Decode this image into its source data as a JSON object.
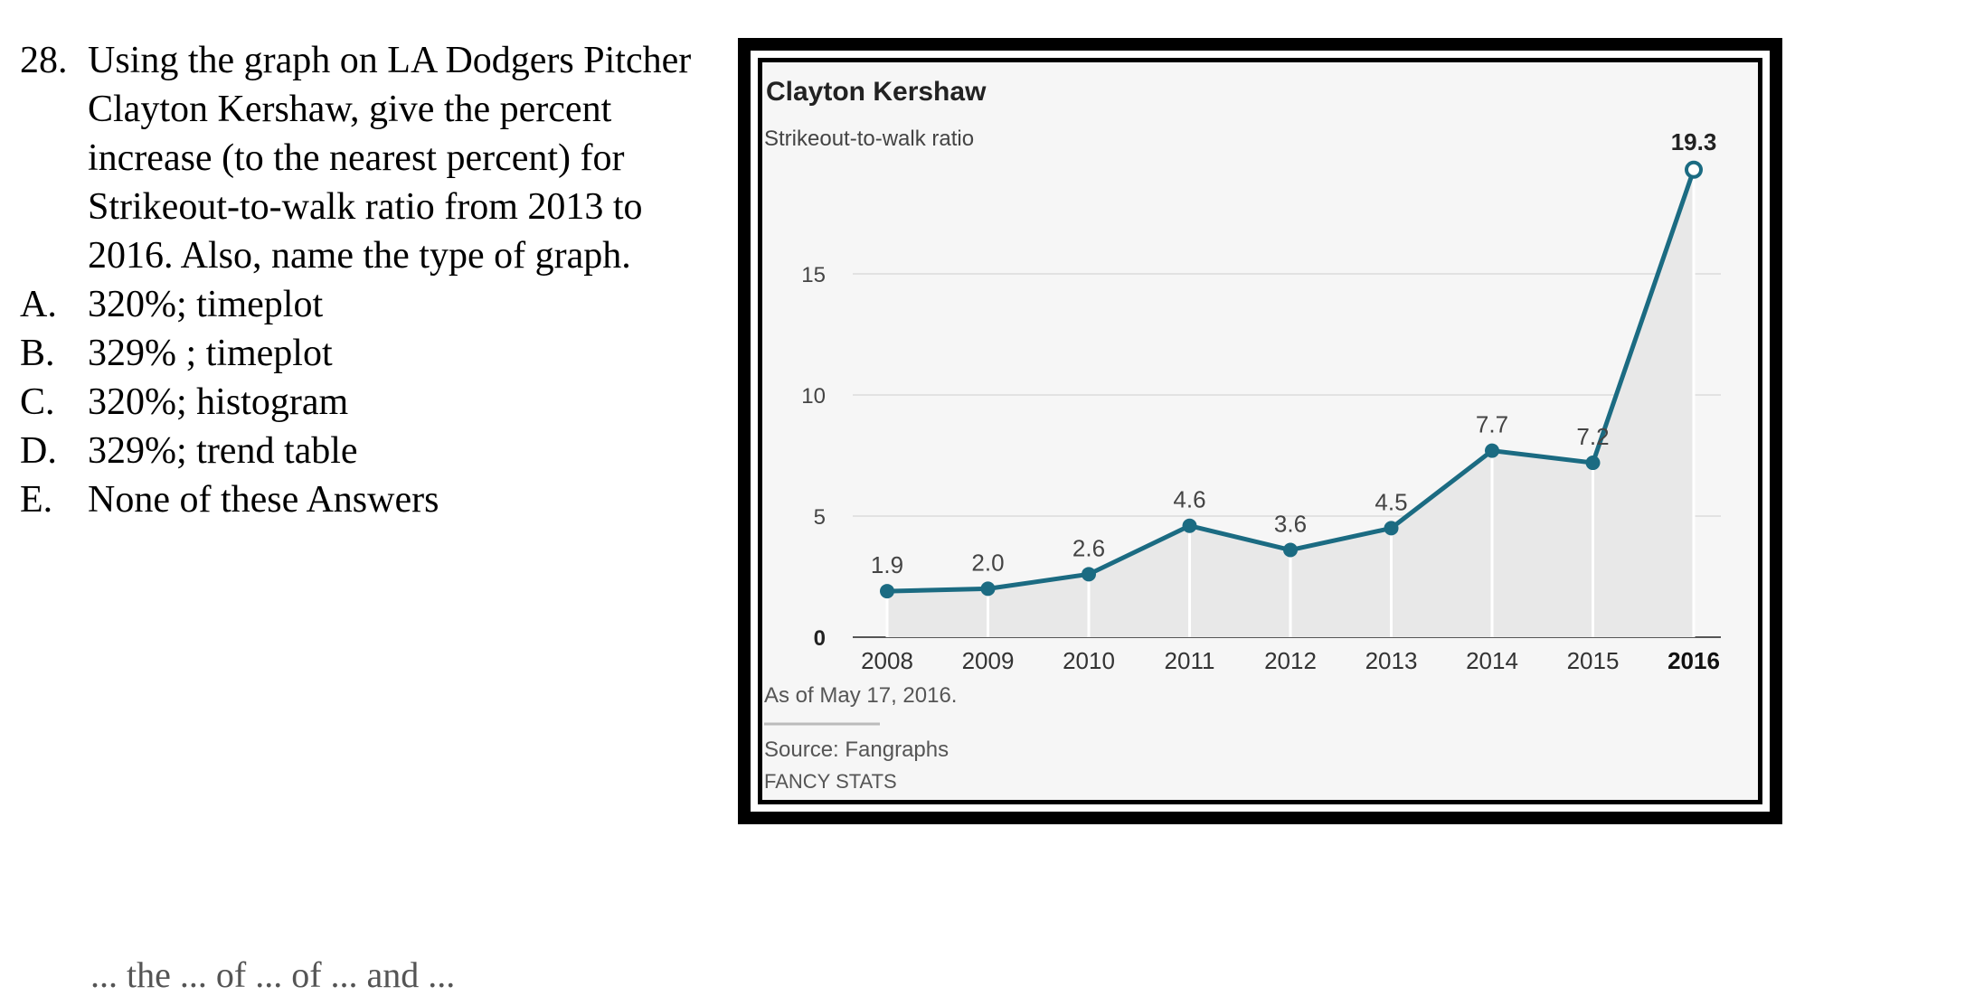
{
  "question": {
    "number": "28.",
    "stem": "Using the graph on LA Dodgers Pitcher Clayton Kershaw, give the percent increase (to the nearest percent) for Strikeout-to-walk ratio from 2013 to 2016. Also, name the type of graph.",
    "choices": [
      {
        "letter": "A.",
        "text": "320%; timeplot"
      },
      {
        "letter": "B.",
        "text": "329% ; timeplot"
      },
      {
        "letter": "C.",
        "text": "320%; histogram"
      },
      {
        "letter": "D.",
        "text": "329%; trend table"
      },
      {
        "letter": "E.",
        "text": "None of these Answers"
      }
    ]
  },
  "chart_data": {
    "type": "area",
    "title": "Clayton Kershaw",
    "subtitle": "Strikeout-to-walk ratio",
    "xlabel": "",
    "ylabel": "",
    "categories": [
      "2008",
      "2009",
      "2010",
      "2011",
      "2012",
      "2013",
      "2014",
      "2015",
      "2016"
    ],
    "values": [
      1.9,
      2.0,
      2.6,
      4.6,
      3.6,
      4.5,
      7.7,
      7.2,
      19.3
    ],
    "data_labels": [
      "1.9",
      "2.0",
      "2.6",
      "4.6",
      "3.6",
      "4.5",
      "7.7",
      "7.2",
      "19.3"
    ],
    "yticks": [
      0,
      5,
      10,
      15
    ],
    "ytick_labels": [
      "0",
      "5",
      "10",
      "15"
    ],
    "ylim": [
      0,
      20
    ],
    "grid": true,
    "highlight_category": "2016",
    "note": "As of May 17, 2016.",
    "source": "Source: Fangraphs",
    "credit": "FANCY STATS",
    "colors": {
      "line": "#1b6b82",
      "area": "#e8e8e8",
      "grid": "#dcdcdc"
    }
  },
  "footer_fragment": "... the ... of ... of ... and ..."
}
